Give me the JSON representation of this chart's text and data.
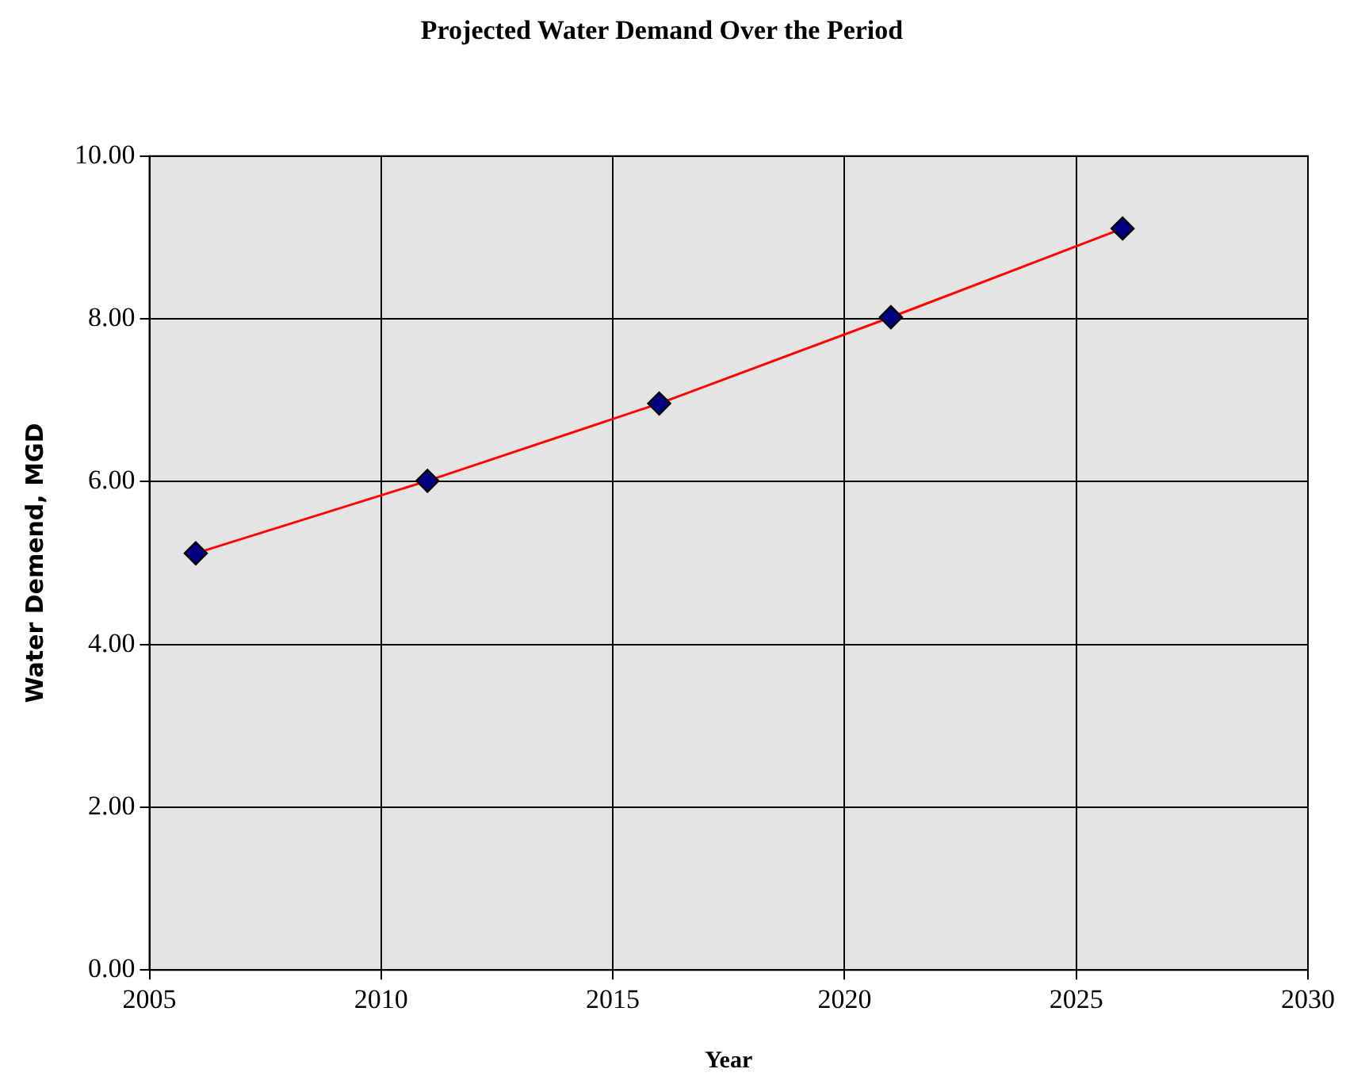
{
  "chart_data": {
    "type": "line",
    "title": "Projected Water Demand Over the Period",
    "xlabel": "Year",
    "ylabel": "Water Demend, MGD",
    "x": [
      2006,
      2011,
      2016,
      2021,
      2026
    ],
    "series": [
      {
        "color": "#ff0000",
        "values": [
          5.12,
          6.01,
          6.96,
          8.02,
          9.11
        ]
      }
    ],
    "xlim": [
      2005,
      2030
    ],
    "xticks": [
      2005,
      2010,
      2015,
      2020,
      2025,
      2030
    ],
    "ylim": [
      0,
      10
    ],
    "yticks": [
      {
        "value": 0,
        "label": "0.00"
      },
      {
        "value": 2,
        "label": "2.00"
      },
      {
        "value": 4,
        "label": "4.00"
      },
      {
        "value": 6,
        "label": "6.00"
      },
      {
        "value": 8,
        "label": "8.00"
      },
      {
        "value": 10,
        "label": "10.00"
      }
    ],
    "grid": true,
    "legend": false,
    "marker": "diamond",
    "line_style": "solid"
  }
}
